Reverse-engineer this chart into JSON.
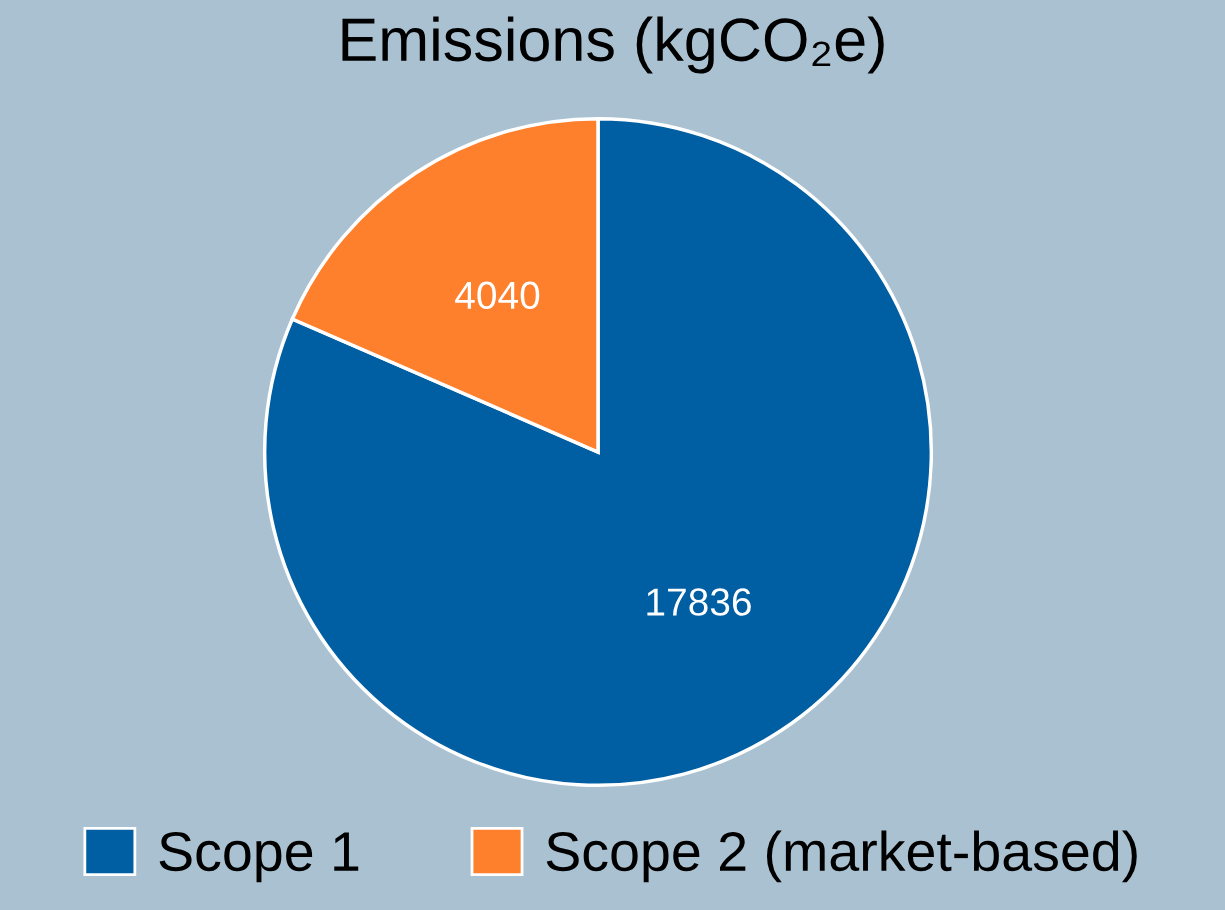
{
  "chart_data": {
    "type": "pie",
    "title": "Emissions (kgCO₂e)",
    "categories": [
      "Scope 1",
      "Scope 2 (market-based)"
    ],
    "values": [
      17836,
      4040
    ],
    "colors": [
      "#005ea2",
      "#fe7f2c"
    ],
    "data_labels": true,
    "legend": "bottom"
  }
}
